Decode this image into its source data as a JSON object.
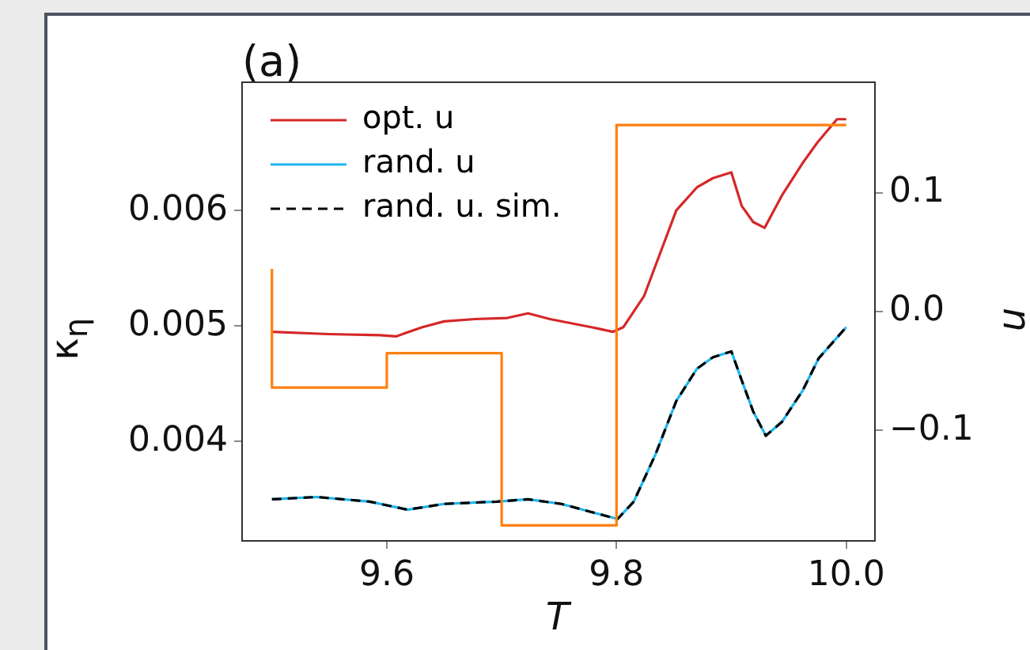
{
  "chart_data": {
    "type": "line",
    "title": "(a)",
    "xlabel": "T",
    "ylabel": "κ$_{η}$",
    "y2label": "u",
    "xlim": [
      9.474,
      10.025
    ],
    "xticks": [
      9.6,
      9.8,
      {
        "value": 10.0,
        "label": "10.0"
      }
    ],
    "ylim": [
      0.00314,
      0.00711
    ],
    "yticks": [
      0.004,
      0.005,
      0.006
    ],
    "y2lim": [
      -0.193,
      0.193
    ],
    "y2ticks": [
      {
        "value": -0.1,
        "label": "−0.1"
      },
      {
        "value": 0.0,
        "label": "0.0"
      },
      0.1
    ],
    "grid": false,
    "legend": "top left",
    "marker": "none",
    "series": [
      {
        "name": "opt. u",
        "color": "#d62728",
        "line_style": "solid",
        "x": [
          9.5,
          9.549,
          9.594,
          9.608,
          9.631,
          9.65,
          9.677,
          9.705,
          9.723,
          9.742,
          9.778,
          9.797,
          9.806,
          9.824,
          9.838,
          9.852,
          9.87,
          9.884,
          9.9,
          9.909,
          9.919,
          9.929,
          9.944,
          9.962,
          9.975,
          9.992,
          10.0
        ],
        "values": [
          0.00495,
          0.00493,
          0.00492,
          0.00491,
          0.00499,
          0.00504,
          0.00506,
          0.00507,
          0.00511,
          0.00506,
          0.00499,
          0.00495,
          0.00499,
          0.00526,
          0.00563,
          0.006,
          0.0062,
          0.00628,
          0.00633,
          0.00604,
          0.0059,
          0.00585,
          0.00613,
          0.00641,
          0.00659,
          0.00679,
          0.00679
        ]
      },
      {
        "name": "rand. u",
        "color": "#1cb5f0",
        "line_style": "solid",
        "x": [
          9.5,
          9.539,
          9.585,
          9.618,
          9.65,
          9.696,
          9.723,
          9.752,
          9.778,
          9.801,
          9.815,
          9.834,
          9.852,
          9.87,
          9.884,
          9.9,
          9.909,
          9.919,
          9.93,
          9.944,
          9.962,
          9.976,
          10.0
        ],
        "values": [
          0.0035,
          0.00352,
          0.00348,
          0.00341,
          0.00346,
          0.00348,
          0.0035,
          0.00346,
          0.00339,
          0.00333,
          0.00348,
          0.00389,
          0.00435,
          0.00463,
          0.00473,
          0.00478,
          0.00453,
          0.00426,
          0.00405,
          0.00417,
          0.00444,
          0.00472,
          0.00499
        ]
      },
      {
        "name": "rand. u. sim.",
        "color": "#000000",
        "line_style": "dashed",
        "x": [
          9.5,
          9.539,
          9.585,
          9.618,
          9.65,
          9.696,
          9.723,
          9.752,
          9.778,
          9.801,
          9.815,
          9.834,
          9.852,
          9.87,
          9.884,
          9.9,
          9.909,
          9.919,
          9.93,
          9.944,
          9.962,
          9.976,
          10.0
        ],
        "values": [
          0.0035,
          0.00352,
          0.00348,
          0.00341,
          0.00346,
          0.00348,
          0.0035,
          0.00346,
          0.00339,
          0.00333,
          0.00348,
          0.00389,
          0.00435,
          0.00463,
          0.00473,
          0.00478,
          0.00453,
          0.00426,
          0.00405,
          0.00417,
          0.00444,
          0.00472,
          0.00499
        ]
      },
      {
        "type": "step",
        "axis": "y2",
        "color": "#ff7f0e",
        "line_style": "solid",
        "x": [
          9.5,
          9.6,
          9.7,
          9.8,
          9.9,
          10.0
        ],
        "values": [
          0.036,
          -0.064,
          -0.035,
          -0.18,
          0.157,
          0.157
        ]
      }
    ]
  }
}
